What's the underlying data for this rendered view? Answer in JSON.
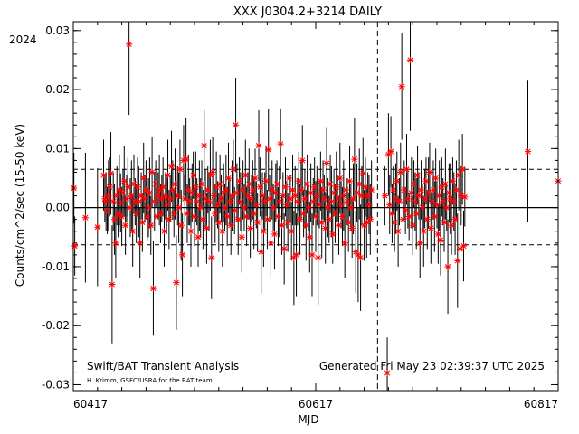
{
  "chart_data": {
    "type": "scatter",
    "title": "XXX J0304.2+3214 DAILY",
    "year_label": "2024",
    "xlabel": "MJD",
    "ylabel": "Counts/cm^2/sec (15-50 keV)",
    "xlim": [
      60417,
      60817
    ],
    "ylim": [
      -0.031,
      0.0315
    ],
    "x_ticks": [
      60417,
      60617,
      60817
    ],
    "y_ticks": [
      0.03,
      0.02,
      0.01,
      0.0,
      -0.01,
      -0.02,
      -0.03
    ],
    "y_tick_labels": [
      "0.03",
      "0.02",
      "0.01",
      "0.00",
      "-0.01",
      "-0.02",
      "-0.03"
    ],
    "reference_lines": {
      "zero": 0.0,
      "upper_sigma": 0.0065,
      "lower_sigma": -0.0063
    },
    "vertical_line_mjd": 60668,
    "marker_color": "#ff0000",
    "annotations": {
      "left_main": "Swift/BAT Transient Analysis",
      "left_sub": "H. Krimm, GSFC/USRA for the BAT team",
      "right": "Generated Fri May 23 02:39:37 UTC 2025"
    },
    "points": [
      [
        60417.5,
        0.0033,
        0.006
      ],
      [
        60418.2,
        -0.0065,
        0.005
      ],
      [
        60427,
        -0.0017,
        0.011
      ],
      [
        60437,
        -0.0033,
        0.01
      ],
      [
        60442,
        0.0055,
        0.006
      ],
      [
        60443,
        0.0015,
        0.004
      ],
      [
        60444,
        0.001,
        0.005
      ],
      [
        60445,
        -0.0005,
        0.004
      ],
      [
        60446,
        0.002,
        0.006
      ],
      [
        60447,
        0.0035,
        0.005
      ],
      [
        60448,
        0.0058,
        0.007
      ],
      [
        60449,
        -0.013,
        0.01
      ],
      [
        60450,
        0.001,
        0.005
      ],
      [
        60451,
        -0.002,
        0.006
      ],
      [
        60452,
        -0.006,
        0.006
      ],
      [
        60453,
        0.002,
        0.005
      ],
      [
        60454,
        -0.001,
        0.004
      ],
      [
        60455,
        0.003,
        0.006
      ],
      [
        60456,
        0.0008,
        0.005
      ],
      [
        60457,
        -0.0015,
        0.005
      ],
      [
        60458,
        0.0025,
        0.004
      ],
      [
        60459,
        0.0045,
        0.006
      ],
      [
        60460,
        -0.003,
        0.005
      ],
      [
        60461,
        0.0015,
        0.004
      ],
      [
        60462,
        0.0035,
        0.005
      ],
      [
        60463,
        0.0277,
        0.012
      ],
      [
        60464,
        0.0,
        0.005
      ],
      [
        60465,
        0.002,
        0.006
      ],
      [
        60466,
        -0.004,
        0.006
      ],
      [
        60467,
        0.004,
        0.005
      ],
      [
        60468,
        0.001,
        0.004
      ],
      [
        60469,
        -0.001,
        0.005
      ],
      [
        60470,
        0.0035,
        0.005
      ],
      [
        60471,
        0.001,
        0.006
      ],
      [
        60472,
        -0.006,
        0.006
      ],
      [
        60473,
        0.002,
        0.004
      ],
      [
        60474,
        -0.0025,
        0.005
      ],
      [
        60475,
        0.005,
        0.006
      ],
      [
        60476,
        0.0015,
        0.004
      ],
      [
        60477,
        0.003,
        0.005
      ],
      [
        60478,
        -0.0015,
        0.004
      ],
      [
        60479,
        0.0,
        0.005
      ],
      [
        60480,
        0.0025,
        0.006
      ],
      [
        60481,
        -0.003,
        0.005
      ],
      [
        60482,
        0.006,
        0.006
      ],
      [
        60483,
        -0.0137,
        0.008
      ],
      [
        60484,
        0.001,
        0.005
      ],
      [
        60485,
        0.004,
        0.004
      ],
      [
        60486,
        -0.0015,
        0.005
      ],
      [
        60487,
        0.002,
        0.004
      ],
      [
        60488,
        0.003,
        0.006
      ],
      [
        60489,
        -0.001,
        0.005
      ],
      [
        60490,
        0.0015,
        0.004
      ],
      [
        60491,
        0.0035,
        0.005
      ],
      [
        60492,
        -0.004,
        0.006
      ],
      [
        60493,
        0.002,
        0.004
      ],
      [
        60494,
        0.0005,
        0.005
      ],
      [
        60495,
        0.0055,
        0.006
      ],
      [
        60496,
        -0.002,
        0.005
      ],
      [
        60497,
        0.0015,
        0.004
      ],
      [
        60498,
        0.007,
        0.006
      ],
      [
        60499,
        0.003,
        0.005
      ],
      [
        60500,
        -0.001,
        0.004
      ],
      [
        60501,
        0.004,
        0.006
      ],
      [
        60502,
        -0.0127,
        0.008
      ],
      [
        60503,
        0.002,
        0.005
      ],
      [
        60504,
        0.0,
        0.006
      ],
      [
        60505,
        0.0065,
        0.005
      ],
      [
        60506,
        -0.003,
        0.006
      ],
      [
        60507,
        -0.008,
        0.007
      ],
      [
        60508,
        0.008,
        0.006
      ],
      [
        60509,
        0.0015,
        0.004
      ],
      [
        60510,
        0.0082,
        0.007
      ],
      [
        60511,
        -0.001,
        0.005
      ],
      [
        60512,
        0.003,
        0.006
      ],
      [
        60513,
        0.001,
        0.004
      ],
      [
        60514,
        -0.004,
        0.006
      ],
      [
        60515,
        0.0025,
        0.005
      ],
      [
        60516,
        0.0055,
        0.004
      ],
      [
        60517,
        -0.0015,
        0.005
      ],
      [
        60518,
        0.0035,
        0.006
      ],
      [
        60519,
        0.001,
        0.004
      ],
      [
        60520,
        -0.005,
        0.005
      ],
      [
        60521,
        0.002,
        0.006
      ],
      [
        60522,
        0.0,
        0.005
      ],
      [
        60523,
        0.004,
        0.004
      ],
      [
        60524,
        -0.002,
        0.005
      ],
      [
        60525,
        0.0105,
        0.006
      ],
      [
        60526,
        0.0015,
        0.005
      ],
      [
        60527,
        -0.0035,
        0.006
      ],
      [
        60528,
        0.003,
        0.004
      ],
      [
        60529,
        0.001,
        0.005
      ],
      [
        60530,
        0.0055,
        0.006
      ],
      [
        60531,
        -0.0085,
        0.007
      ],
      [
        60532,
        0.006,
        0.006
      ],
      [
        60533,
        0.002,
        0.004
      ],
      [
        60534,
        -0.001,
        0.005
      ],
      [
        60535,
        0.0035,
        0.006
      ],
      [
        60536,
        0.0005,
        0.004
      ],
      [
        60537,
        -0.0025,
        0.005
      ],
      [
        60538,
        0.004,
        0.005
      ],
      [
        60539,
        0.0015,
        0.004
      ],
      [
        60540,
        -0.004,
        0.006
      ],
      [
        60541,
        0.0025,
        0.005
      ],
      [
        60542,
        0.0,
        0.004
      ],
      [
        60543,
        0.003,
        0.006
      ],
      [
        60544,
        -0.0015,
        0.005
      ],
      [
        60545,
        0.005,
        0.006
      ],
      [
        60546,
        0.001,
        0.004
      ],
      [
        60547,
        -0.003,
        0.005
      ],
      [
        60548,
        0.002,
        0.006
      ],
      [
        60549,
        0.0065,
        0.005
      ],
      [
        60550,
        -0.0005,
        0.004
      ],
      [
        60551,
        0.014,
        0.008
      ],
      [
        60552,
        0.0025,
        0.005
      ],
      [
        60553,
        -0.002,
        0.006
      ],
      [
        60554,
        0.0045,
        0.004
      ],
      [
        60555,
        0.001,
        0.005
      ],
      [
        60556,
        -0.005,
        0.006
      ],
      [
        60557,
        0.003,
        0.005
      ],
      [
        60558,
        0.0,
        0.004
      ],
      [
        60559,
        0.0055,
        0.006
      ],
      [
        60560,
        -0.0015,
        0.005
      ],
      [
        60561,
        0.002,
        0.004
      ],
      [
        60562,
        0.004,
        0.006
      ],
      [
        60563,
        -0.0035,
        0.005
      ],
      [
        60564,
        0.0015,
        0.004
      ],
      [
        60565,
        0.003,
        0.005
      ],
      [
        60566,
        -0.001,
        0.006
      ],
      [
        60567,
        0.005,
        0.005
      ],
      [
        60568,
        0.0005,
        0.004
      ],
      [
        60569,
        -0.0025,
        0.005
      ],
      [
        60570,
        0.0105,
        0.006
      ],
      [
        60571,
        0.0035,
        0.005
      ],
      [
        60572,
        -0.0075,
        0.007
      ],
      [
        60573,
        0.002,
        0.004
      ],
      [
        60574,
        -0.004,
        0.006
      ],
      [
        60575,
        0.001,
        0.005
      ],
      [
        60576,
        0.0045,
        0.006
      ],
      [
        60577,
        -0.002,
        0.005
      ],
      [
        60578,
        0.0098,
        0.007
      ],
      [
        60579,
        0.0015,
        0.004
      ],
      [
        60580,
        -0.006,
        0.006
      ],
      [
        60581,
        0.003,
        0.005
      ],
      [
        60582,
        0.0,
        0.004
      ],
      [
        60583,
        -0.0045,
        0.006
      ],
      [
        60584,
        0.0025,
        0.005
      ],
      [
        60585,
        0.004,
        0.004
      ],
      [
        60586,
        -0.0015,
        0.005
      ],
      [
        60587,
        0.001,
        0.006
      ],
      [
        60588,
        0.0108,
        0.006
      ],
      [
        60589,
        -0.003,
        0.005
      ],
      [
        60590,
        0.002,
        0.004
      ],
      [
        60591,
        -0.007,
        0.006
      ],
      [
        60592,
        0.0035,
        0.005
      ],
      [
        60593,
        0.0005,
        0.004
      ],
      [
        60594,
        -0.0025,
        0.005
      ],
      [
        60595,
        0.005,
        0.006
      ],
      [
        60596,
        0.0015,
        0.004
      ],
      [
        60597,
        -0.004,
        0.005
      ],
      [
        60598,
        0.003,
        0.006
      ],
      [
        60599,
        -0.0085,
        0.008
      ],
      [
        60600,
        0.002,
        0.005
      ],
      [
        60601,
        -0.008,
        0.007
      ],
      [
        60602,
        0.001,
        0.004
      ],
      [
        60603,
        0.0045,
        0.005
      ],
      [
        60604,
        -0.002,
        0.006
      ],
      [
        60605,
        0.003,
        0.005
      ],
      [
        60606,
        0.008,
        0.006
      ],
      [
        60607,
        -0.001,
        0.004
      ],
      [
        60608,
        0.0015,
        0.005
      ],
      [
        60609,
        -0.003,
        0.006
      ],
      [
        60610,
        0.004,
        0.005
      ],
      [
        60611,
        0.0,
        0.004
      ],
      [
        60612,
        -0.005,
        0.006
      ],
      [
        60613,
        0.0025,
        0.005
      ],
      [
        60614,
        -0.008,
        0.007
      ],
      [
        60615,
        0.001,
        0.004
      ],
      [
        60616,
        0.0035,
        0.005
      ],
      [
        60617,
        -0.0015,
        0.006
      ],
      [
        60618,
        0.002,
        0.005
      ],
      [
        60619,
        -0.0085,
        0.008
      ],
      [
        60620,
        0.0005,
        0.004
      ],
      [
        60621,
        0.0045,
        0.005
      ],
      [
        60622,
        -0.0025,
        0.006
      ],
      [
        60623,
        0.003,
        0.005
      ],
      [
        60624,
        0.0015,
        0.004
      ],
      [
        60625,
        -0.0035,
        0.006
      ],
      [
        60626,
        0.0075,
        0.006
      ],
      [
        60627,
        0.0,
        0.005
      ],
      [
        60628,
        -0.002,
        0.004
      ],
      [
        60629,
        0.004,
        0.005
      ],
      [
        60630,
        0.001,
        0.006
      ],
      [
        60631,
        -0.0045,
        0.005
      ],
      [
        60632,
        0.0025,
        0.004
      ],
      [
        60633,
        -0.001,
        0.005
      ],
      [
        60634,
        0.0035,
        0.006
      ],
      [
        60635,
        0.0015,
        0.004
      ],
      [
        60636,
        -0.003,
        0.005
      ],
      [
        60637,
        0.005,
        0.006
      ],
      [
        60638,
        0.0005,
        0.004
      ],
      [
        60639,
        -0.0015,
        0.005
      ],
      [
        60640,
        0.002,
        0.006
      ],
      [
        60641,
        -0.006,
        0.006
      ],
      [
        60642,
        0.003,
        0.005
      ],
      [
        60643,
        0.001,
        0.004
      ],
      [
        60644,
        -0.0025,
        0.005
      ],
      [
        60645,
        0.0045,
        0.006
      ],
      [
        60646,
        0.0,
        0.004
      ],
      [
        60647,
        -0.0035,
        0.005
      ],
      [
        60648,
        0.0015,
        0.006
      ],
      [
        60649,
        0.0082,
        0.007
      ],
      [
        60650,
        -0.0075,
        0.007
      ],
      [
        60651,
        0.0025,
        0.005
      ],
      [
        60652,
        -0.008,
        0.008
      ],
      [
        60653,
        0.004,
        0.006
      ],
      [
        60654,
        -0.0085,
        0.009
      ],
      [
        60655,
        0.002,
        0.005
      ],
      [
        60656,
        0.0058,
        0.006
      ],
      [
        60657,
        -0.003,
        0.006
      ],
      [
        60658,
        0.0035,
        0.005
      ],
      [
        60659,
        -0.0025,
        0.006
      ],
      [
        60660,
        0.002,
        0.004
      ],
      [
        60661,
        0.0005,
        0.005
      ],
      [
        60662,
        -0.002,
        0.006
      ],
      [
        60663,
        0.003,
        0.005
      ],
      [
        60674,
        0.002,
        0.005
      ],
      [
        60676,
        -0.028,
        0.006
      ],
      [
        60677,
        0.009,
        0.007
      ],
      [
        60678,
        0.0005,
        0.005
      ],
      [
        60679,
        0.0095,
        0.006
      ],
      [
        60680,
        -0.001,
        0.005
      ],
      [
        60681,
        0.003,
        0.004
      ],
      [
        60682,
        -0.0025,
        0.005
      ],
      [
        60683,
        0.0015,
        0.006
      ],
      [
        60684,
        0.0045,
        0.005
      ],
      [
        60685,
        -0.004,
        0.006
      ],
      [
        60686,
        0.001,
        0.004
      ],
      [
        60687,
        0.006,
        0.005
      ],
      [
        60688,
        0.0205,
        0.009
      ],
      [
        60689,
        -0.002,
        0.006
      ],
      [
        60690,
        0.003,
        0.005
      ],
      [
        60691,
        -0.0005,
        0.004
      ],
      [
        60692,
        0.0065,
        0.006
      ],
      [
        60693,
        0.0015,
        0.005
      ],
      [
        60694,
        -0.0015,
        0.004
      ],
      [
        60695,
        0.025,
        0.012
      ],
      [
        60696,
        0.0025,
        0.006
      ],
      [
        60697,
        -0.003,
        0.005
      ],
      [
        60698,
        0.004,
        0.004
      ],
      [
        60699,
        0.001,
        0.005
      ],
      [
        60700,
        -0.001,
        0.006
      ],
      [
        60701,
        0.0055,
        0.005
      ],
      [
        60702,
        0.002,
        0.004
      ],
      [
        60703,
        -0.006,
        0.006
      ],
      [
        60704,
        0.003,
        0.005
      ],
      [
        60705,
        0.0,
        0.004
      ],
      [
        60706,
        -0.004,
        0.006
      ],
      [
        60707,
        0.0015,
        0.005
      ],
      [
        60708,
        0.0045,
        0.004
      ],
      [
        60709,
        -0.002,
        0.005
      ],
      [
        60710,
        0.0025,
        0.006
      ],
      [
        60711,
        0.006,
        0.005
      ],
      [
        60712,
        -0.0035,
        0.006
      ],
      [
        60713,
        0.001,
        0.004
      ],
      [
        60714,
        0.003,
        0.005
      ],
      [
        60715,
        -0.0015,
        0.006
      ],
      [
        60716,
        0.005,
        0.005
      ],
      [
        60717,
        0.0005,
        0.004
      ],
      [
        60718,
        -0.0045,
        0.005
      ],
      [
        60719,
        0.002,
        0.006
      ],
      [
        60720,
        -0.0055,
        0.006
      ],
      [
        60721,
        0.0035,
        0.005
      ],
      [
        60722,
        0.001,
        0.004
      ],
      [
        60723,
        -0.0025,
        0.005
      ],
      [
        60724,
        0.004,
        0.006
      ],
      [
        60725,
        0.0,
        0.004
      ],
      [
        60726,
        -0.01,
        0.008
      ],
      [
        60727,
        0.0025,
        0.005
      ],
      [
        60728,
        0.0015,
        0.006
      ],
      [
        60729,
        -0.003,
        0.005
      ],
      [
        60730,
        0.0045,
        0.004
      ],
      [
        60731,
        0.001,
        0.005
      ],
      [
        60732,
        -0.002,
        0.006
      ],
      [
        60733,
        0.003,
        0.005
      ],
      [
        60734,
        -0.009,
        0.008
      ],
      [
        60735,
        0.0055,
        0.006
      ],
      [
        60736,
        -0.007,
        0.006
      ],
      [
        60737,
        0.002,
        0.005
      ],
      [
        60738,
        0.0065,
        0.006
      ],
      [
        60739,
        -0.0065,
        0.006
      ],
      [
        60740,
        0.0018,
        0.005
      ],
      [
        60792,
        0.0095,
        0.012
      ],
      [
        60817,
        0.0045,
        0.006
      ]
    ]
  }
}
